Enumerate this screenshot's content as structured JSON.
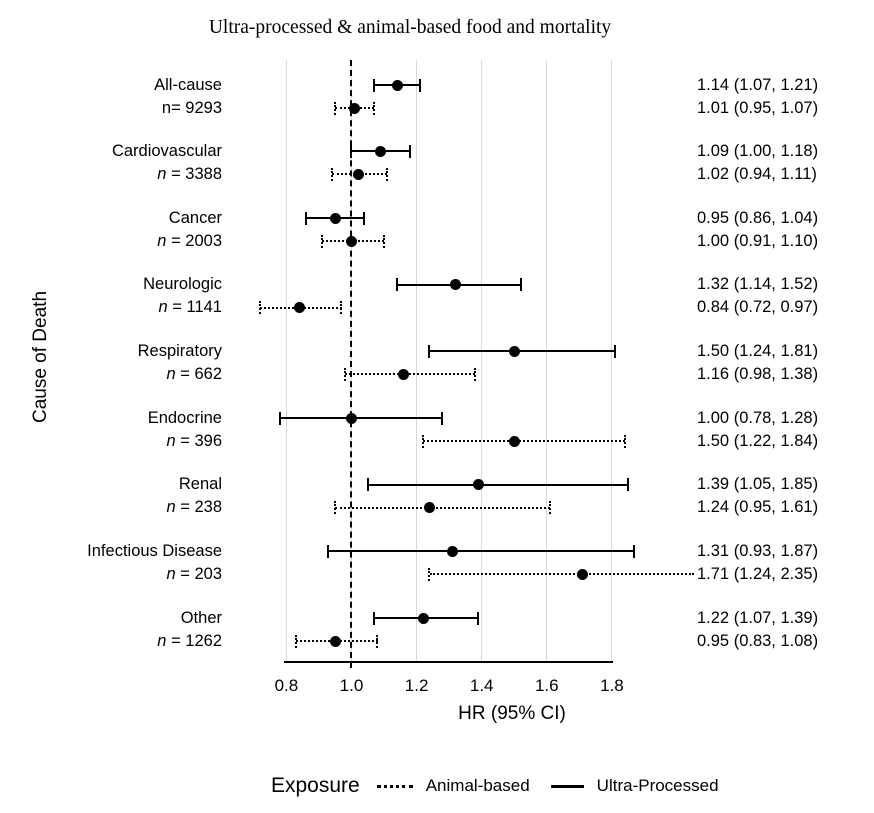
{
  "title": "Ultra-processed & animal-based food and mortality",
  "colors": {
    "foreground": "#000000",
    "gridline": "#d9d9d9",
    "background": "#ffffff"
  },
  "chart_data": {
    "type": "scatter",
    "subtype": "forest-plot",
    "title": "Ultra-processed & animal-based food and mortality",
    "xlabel": "HR (95% CI)",
    "ylabel": "Cause of Death",
    "xlim": [
      0.8,
      1.8
    ],
    "xticks": [
      "0.8",
      "1.0",
      "1.2",
      "1.4",
      "1.6",
      "1.8"
    ],
    "xtick_values": [
      0.8,
      1.0,
      1.2,
      1.4,
      1.6,
      1.8
    ],
    "reference_line": 1.0,
    "grid": "vertical-gridlines-at-ticks",
    "legend": {
      "title": "Exposure",
      "position": "bottom",
      "entries": [
        {
          "label": "Animal-based",
          "line_style": "dotted"
        },
        {
          "label": "Ultra-Processed",
          "line_style": "solid"
        }
      ]
    },
    "rows": [
      {
        "cause": "All-cause",
        "n_label": "n= 9293",
        "n_italic": false,
        "ultra_processed": {
          "hr": 1.14,
          "lo": 1.07,
          "hi": 1.21,
          "label": "1.14 (1.07, 1.21)"
        },
        "animal_based": {
          "hr": 1.01,
          "lo": 0.95,
          "hi": 1.07,
          "label": "1.01 (0.95, 1.07)"
        }
      },
      {
        "cause": "Cardiovascular",
        "n_label": "n = 3388",
        "n_italic": true,
        "ultra_processed": {
          "hr": 1.09,
          "lo": 1.0,
          "hi": 1.18,
          "label": "1.09 (1.00, 1.18)"
        },
        "animal_based": {
          "hr": 1.02,
          "lo": 0.94,
          "hi": 1.11,
          "label": "1.02 (0.94, 1.11)"
        }
      },
      {
        "cause": "Cancer",
        "n_label": "n = 2003",
        "n_italic": true,
        "ultra_processed": {
          "hr": 0.95,
          "lo": 0.86,
          "hi": 1.04,
          "label": "0.95 (0.86, 1.04)"
        },
        "animal_based": {
          "hr": 1.0,
          "lo": 0.91,
          "hi": 1.1,
          "label": "1.00 (0.91, 1.10)"
        }
      },
      {
        "cause": "Neurologic",
        "n_label": "n = 1141",
        "n_italic": true,
        "ultra_processed": {
          "hr": 1.32,
          "lo": 1.14,
          "hi": 1.52,
          "label": "1.32 (1.14, 1.52)"
        },
        "animal_based": {
          "hr": 0.84,
          "lo": 0.72,
          "hi": 0.97,
          "label": "0.84 (0.72, 0.97)"
        }
      },
      {
        "cause": "Respiratory",
        "n_label": "n = 662",
        "n_italic": true,
        "ultra_processed": {
          "hr": 1.5,
          "lo": 1.24,
          "hi": 1.81,
          "label": "1.50 (1.24, 1.81)"
        },
        "animal_based": {
          "hr": 1.16,
          "lo": 0.98,
          "hi": 1.38,
          "label": "1.16 (0.98, 1.38)"
        }
      },
      {
        "cause": "Endocrine",
        "n_label": "n = 396",
        "n_italic": true,
        "ultra_processed": {
          "hr": 1.0,
          "lo": 0.78,
          "hi": 1.28,
          "label": "1.00 (0.78, 1.28)"
        },
        "animal_based": {
          "hr": 1.5,
          "lo": 1.22,
          "hi": 1.84,
          "label": "1.50 (1.22, 1.84)"
        }
      },
      {
        "cause": "Renal",
        "n_label": "n = 238",
        "n_italic": true,
        "ultra_processed": {
          "hr": 1.39,
          "lo": 1.05,
          "hi": 1.85,
          "label": "1.39 (1.05, 1.85)"
        },
        "animal_based": {
          "hr": 1.24,
          "lo": 0.95,
          "hi": 1.61,
          "label": "1.24 (0.95, 1.61)"
        }
      },
      {
        "cause": "Infectious Disease",
        "n_label": "n = 203",
        "n_italic": true,
        "ultra_processed": {
          "hr": 1.31,
          "lo": 0.93,
          "hi": 1.87,
          "label": "1.31 (0.93, 1.87)"
        },
        "animal_based": {
          "hr": 1.71,
          "lo": 1.24,
          "hi": 2.35,
          "label": "1.71 (1.24, 2.35)",
          "ci_clipped_right": true
        }
      },
      {
        "cause": "Other",
        "n_label": "n = 1262",
        "n_italic": true,
        "ultra_processed": {
          "hr": 1.22,
          "lo": 1.07,
          "hi": 1.39,
          "label": "1.22 (1.07, 1.39)"
        },
        "animal_based": {
          "hr": 0.95,
          "lo": 0.83,
          "hi": 1.08,
          "label": "0.95 (0.83, 1.08)"
        }
      }
    ]
  }
}
